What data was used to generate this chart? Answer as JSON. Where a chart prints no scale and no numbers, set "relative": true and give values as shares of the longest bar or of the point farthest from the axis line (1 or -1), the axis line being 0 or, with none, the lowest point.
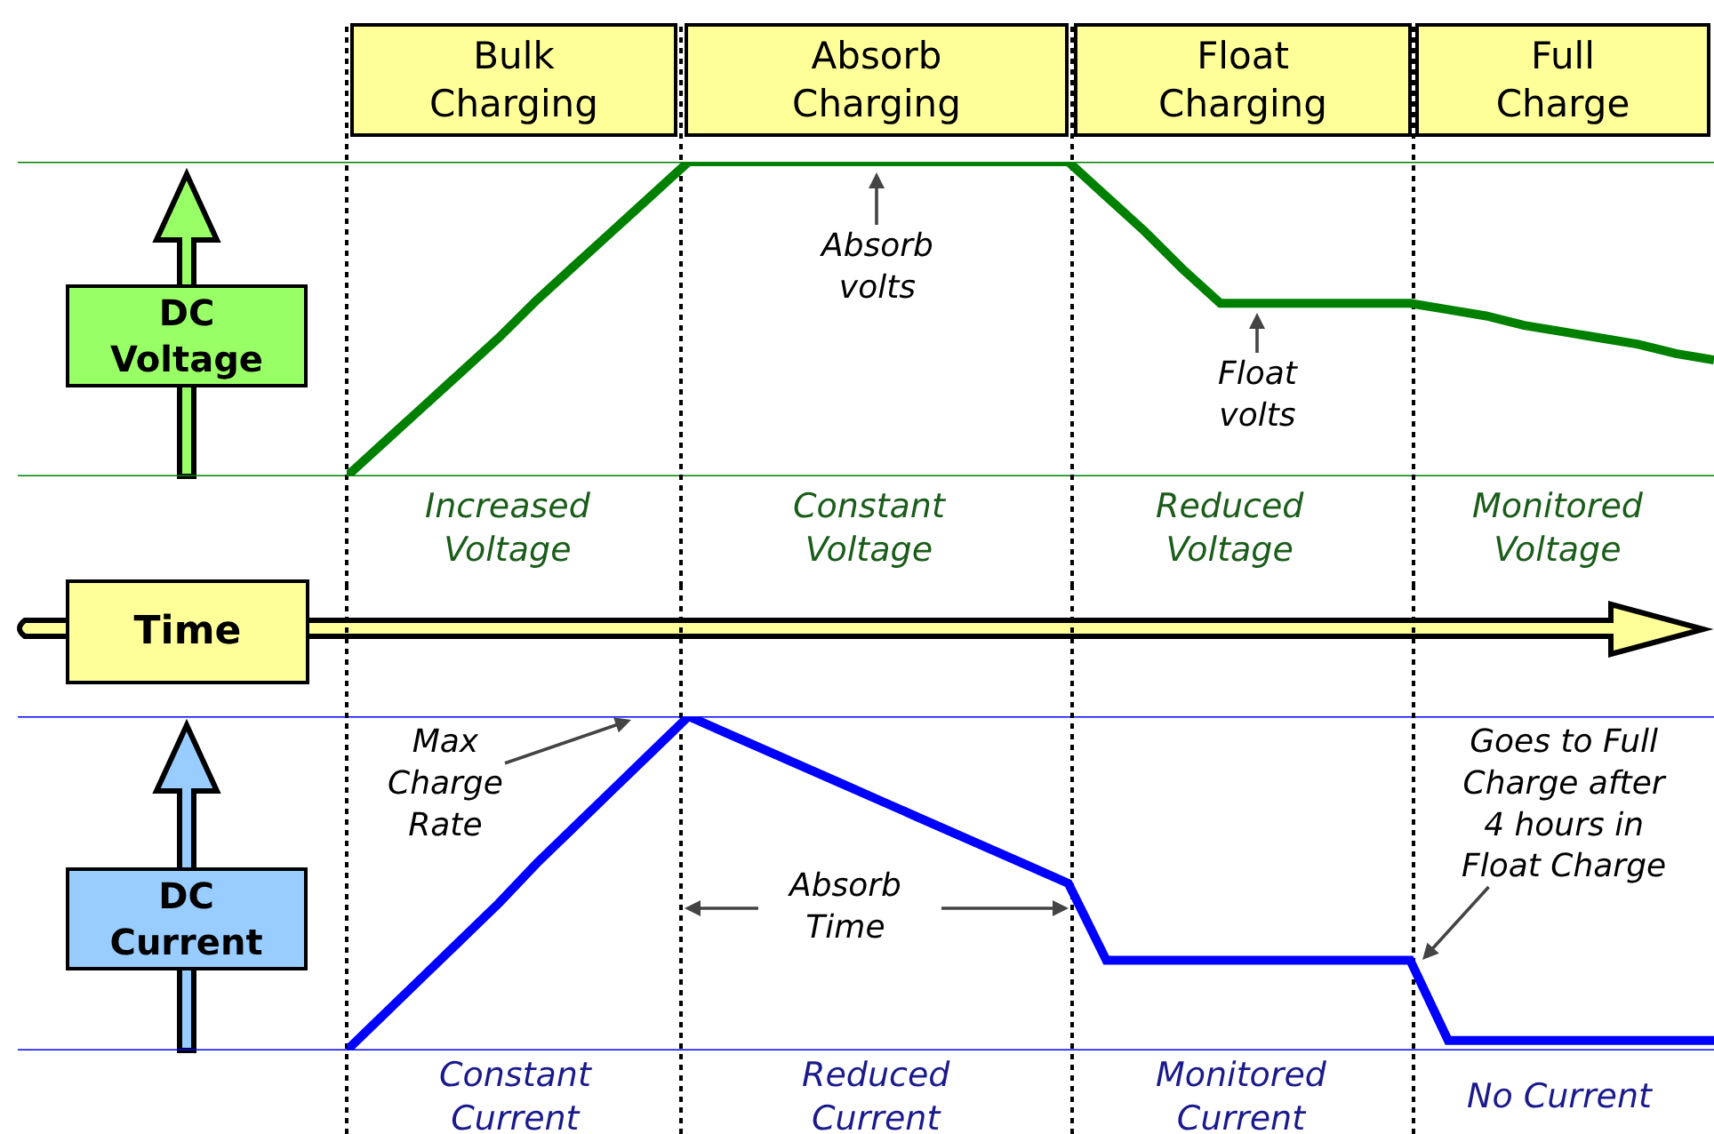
{
  "chart_data": [
    {
      "type": "line",
      "relative": true,
      "ylabel": "DC\nVoltage",
      "xlabel": "Time",
      "grid": "x",
      "marker": "none",
      "line_style": "solid",
      "categories": [
        null,
        null,
        null,
        null,
        null,
        null,
        null,
        null,
        null,
        null,
        null,
        null,
        null,
        null,
        null,
        null,
        null,
        null,
        null,
        null,
        null,
        null,
        null,
        null,
        null,
        null,
        null,
        null,
        null,
        null,
        null,
        null,
        null,
        null,
        null,
        null,
        null
      ],
      "series": [
        {
          "color": "#008000",
          "values": [
            0,
            0.11,
            0.22,
            0.33,
            0.44,
            0.56,
            0.67,
            0.78,
            0.89,
            1,
            1,
            1,
            1,
            1,
            1,
            1,
            1,
            1,
            1,
            1,
            0.89,
            0.78,
            0.66,
            0.55,
            0.55,
            0.55,
            0.55,
            0.55,
            0.55,
            0.53,
            0.51,
            0.48,
            0.46,
            0.44,
            0.42,
            0.39,
            0.37
          ]
        }
      ],
      "ref_lines": [
        {
          "axis": "y",
          "value": 0,
          "color": "#008000"
        },
        {
          "axis": "y",
          "value": 1,
          "color": "#008000"
        }
      ],
      "annotations": [
        "Bulk\nCharging",
        "Absorb\nCharging",
        "Float\nCharging",
        "Full\nCharge",
        "Absorb\nvolts",
        "Float\nvolts",
        "Increased\nVoltage",
        "Constant\nVoltage",
        "Reduced\nVoltage",
        "Monitored\nVoltage"
      ]
    },
    {
      "type": "line",
      "relative": true,
      "ylabel": "DC\nCurrent",
      "grid": "x",
      "marker": "none",
      "line_style": "solid",
      "categories": [
        null,
        null,
        null,
        null,
        null,
        null,
        null,
        null,
        null,
        null,
        null,
        null,
        null,
        null,
        null,
        null,
        null,
        null,
        null,
        null,
        null,
        null,
        null,
        null,
        null,
        null,
        null,
        null,
        null,
        null,
        null,
        null,
        null,
        null,
        null,
        null,
        null
      ],
      "series": [
        {
          "color": "#0000ff",
          "values": [
            0,
            0.11,
            0.22,
            0.33,
            0.44,
            0.56,
            0.67,
            0.78,
            0.89,
            1,
            0.95,
            0.9,
            0.85,
            0.8,
            0.75,
            0.7,
            0.65,
            0.6,
            0.55,
            0.5,
            0.27,
            0.27,
            0.27,
            0.27,
            0.27,
            0.27,
            0.27,
            0.27,
            0.27,
            0.03,
            0.03,
            0.03,
            0.03,
            0.03,
            0.03,
            0.03,
            0.03
          ]
        }
      ],
      "ref_lines": [
        {
          "axis": "y",
          "value": 0,
          "color": "#0000ff"
        },
        {
          "axis": "y",
          "value": 1,
          "color": "#0000ff"
        }
      ],
      "annotations": [
        "Max\nCharge\nRate",
        "Absorb\nTime",
        "Goes to Full\nCharge after\n4 hours in\nFloat Charge",
        "Constant\nCurrent",
        "Reduced\nCurrent",
        "Monitored\nCurrent",
        "No Current"
      ]
    }
  ]
}
